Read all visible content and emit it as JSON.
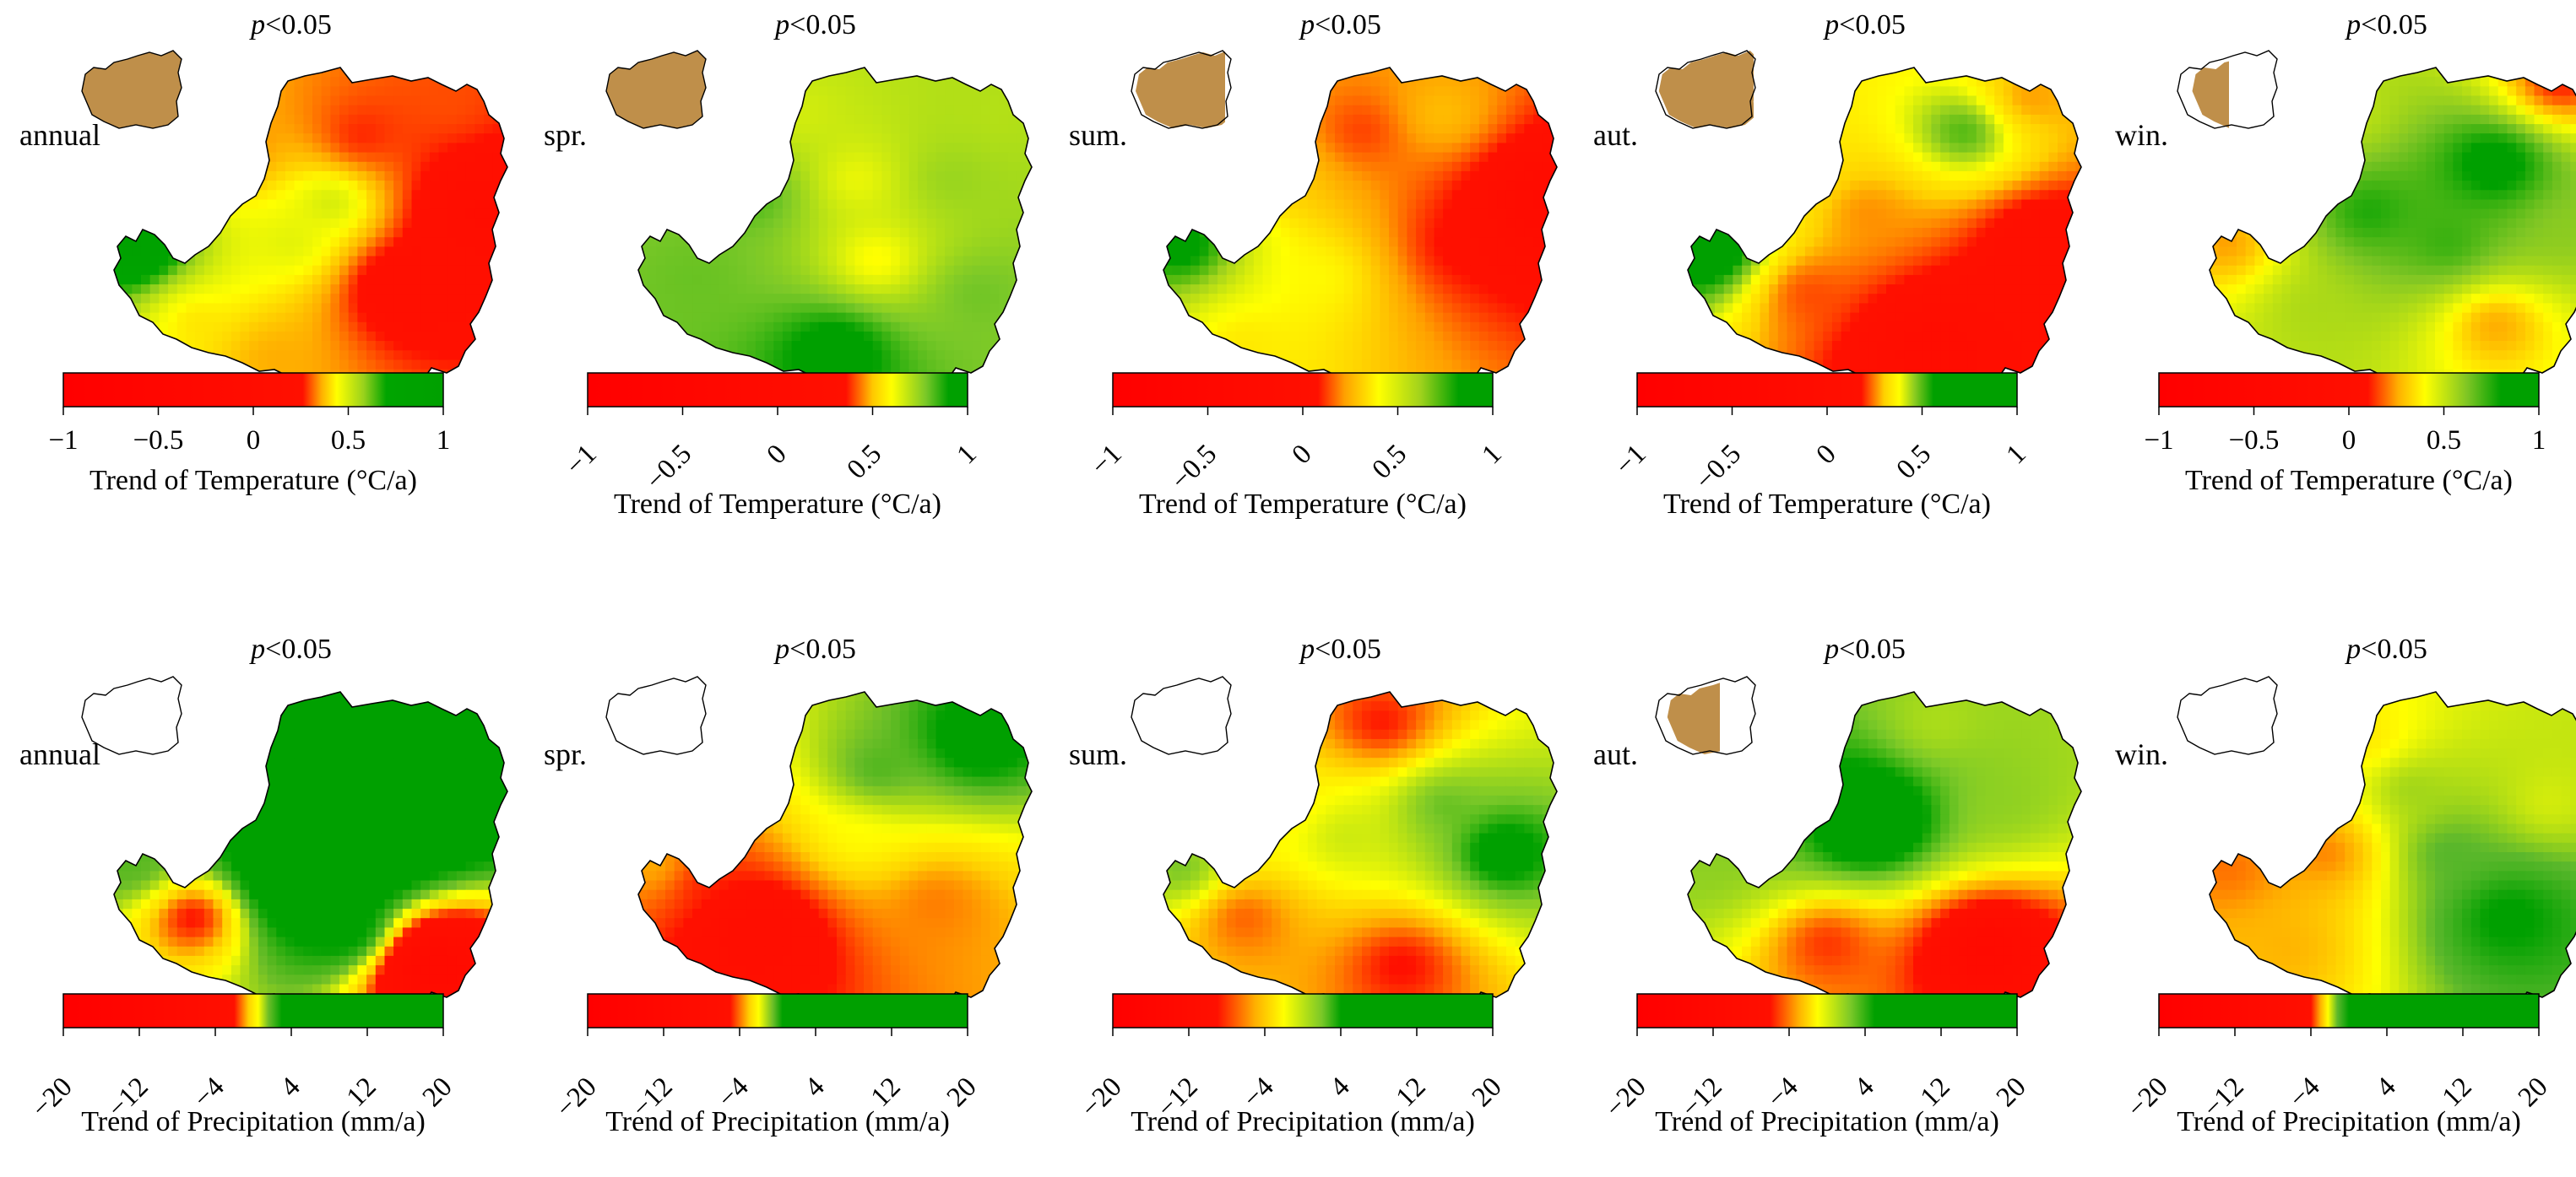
{
  "chart_data": [
    {
      "type": "heatmap",
      "variable": "temperature",
      "season": "annual",
      "label": "annual",
      "significance": "p<0.05",
      "significance_p": "p",
      "significance_rest": "<0.05",
      "colorbar": {
        "range": [
          -1,
          1
        ],
        "ticks": [
          -1,
          -0.5,
          0,
          0.5,
          1
        ],
        "tick_labels": [
          "−1",
          "−0.5",
          "0",
          "0.5",
          "1"
        ],
        "tick_rotation": "horizontal",
        "title": "Trend of Temperature (°C/a)",
        "stops": [
          {
            "value": -1,
            "color": "#ff0000"
          },
          {
            "value": 0.26,
            "color": "#ff1000"
          },
          {
            "value": 0.36,
            "color": "#ffb000"
          },
          {
            "value": 0.44,
            "color": "#ffff00"
          },
          {
            "value": 0.58,
            "color": "#9ad21c"
          },
          {
            "value": 0.7,
            "color": "#00a400"
          },
          {
            "value": 1,
            "color": "#00a000"
          }
        ]
      },
      "inset_significant_fraction": 1.0,
      "map_hotspots": [
        {
          "u": 0.62,
          "v": 0.22,
          "value": 0.25
        },
        {
          "u": 0.3,
          "v": 0.28,
          "value": 0.3
        },
        {
          "u": 0.72,
          "v": 0.68,
          "value": 0.1
        },
        {
          "u": 0.92,
          "v": 0.45,
          "value": 0.0
        },
        {
          "u": 0.45,
          "v": 0.55,
          "value": 0.5
        },
        {
          "u": 0.05,
          "v": 0.55,
          "value": 1.0
        },
        {
          "u": 0.55,
          "v": 0.42,
          "value": 0.55
        },
        {
          "u": 0.2,
          "v": 0.78,
          "value": 0.4
        },
        {
          "u": 0.85,
          "v": 0.12,
          "value": 0.3
        },
        {
          "u": 0.4,
          "v": 0.9,
          "value": 0.35
        }
      ]
    },
    {
      "type": "heatmap",
      "variable": "temperature",
      "season": "spring",
      "label": "spr.",
      "significance": "p<0.05",
      "significance_p": "p",
      "significance_rest": "<0.05",
      "colorbar": {
        "range": [
          -1,
          1
        ],
        "ticks": [
          -1,
          -0.5,
          0,
          0.5,
          1
        ],
        "tick_labels": [
          "−1",
          "−0.5",
          "0",
          "0.5",
          "1"
        ],
        "tick_rotation": "angled",
        "title": "Trend of Temperature (°C/a)",
        "stops": [
          {
            "value": -1,
            "color": "#ff0000"
          },
          {
            "value": 0.36,
            "color": "#ff1000"
          },
          {
            "value": 0.5,
            "color": "#ffc800"
          },
          {
            "value": 0.6,
            "color": "#ffff00"
          },
          {
            "value": 0.78,
            "color": "#7ac828"
          },
          {
            "value": 0.9,
            "color": "#00a000"
          },
          {
            "value": 1,
            "color": "#00a000"
          }
        ]
      },
      "inset_significant_fraction": 1.0,
      "map_hotspots": [
        {
          "u": 0.5,
          "v": 0.88,
          "value": 1.0
        },
        {
          "u": 0.3,
          "v": 0.4,
          "value": 0.85
        },
        {
          "u": 0.78,
          "v": 0.35,
          "value": 0.75
        },
        {
          "u": 0.55,
          "v": 0.35,
          "value": 0.6
        },
        {
          "u": 0.6,
          "v": 0.6,
          "value": 0.55
        },
        {
          "u": 0.85,
          "v": 0.7,
          "value": 0.8
        },
        {
          "u": 0.15,
          "v": 0.65,
          "value": 0.8
        },
        {
          "u": 0.4,
          "v": 0.15,
          "value": 0.65
        },
        {
          "u": 0.9,
          "v": 0.15,
          "value": 0.7
        }
      ]
    },
    {
      "type": "heatmap",
      "variable": "temperature",
      "season": "summer",
      "label": "sum.",
      "significance": "p<0.05",
      "significance_p": "p",
      "significance_rest": "<0.05",
      "colorbar": {
        "range": [
          -1,
          1
        ],
        "ticks": [
          -1,
          -0.5,
          0,
          0.5,
          1
        ],
        "tick_labels": [
          "−1",
          "−0.5",
          "0",
          "0.5",
          "1"
        ],
        "tick_rotation": "angled",
        "title": "Trend of Temperature (°C/a)",
        "stops": [
          {
            "value": -1,
            "color": "#ff0000"
          },
          {
            "value": 0.08,
            "color": "#ff1000"
          },
          {
            "value": 0.22,
            "color": "#ffa000"
          },
          {
            "value": 0.4,
            "color": "#ffff00"
          },
          {
            "value": 0.62,
            "color": "#a0d21c"
          },
          {
            "value": 0.82,
            "color": "#00a000"
          },
          {
            "value": 1,
            "color": "#00a000"
          }
        ]
      },
      "inset_significant_fraction": 0.8,
      "map_hotspots": [
        {
          "u": 0.95,
          "v": 0.42,
          "value": -0.3
        },
        {
          "u": 0.5,
          "v": 0.2,
          "value": 0.1
        },
        {
          "u": 0.75,
          "v": 0.55,
          "value": 0.05
        },
        {
          "u": 0.3,
          "v": 0.35,
          "value": 0.3
        },
        {
          "u": 0.4,
          "v": 0.65,
          "value": 0.4
        },
        {
          "u": 0.05,
          "v": 0.55,
          "value": 0.95
        },
        {
          "u": 0.2,
          "v": 0.85,
          "value": 0.35
        },
        {
          "u": 0.7,
          "v": 0.15,
          "value": 0.3
        }
      ]
    },
    {
      "type": "heatmap",
      "variable": "temperature",
      "season": "autumn",
      "label": "aut.",
      "significance": "p<0.05",
      "significance_p": "p",
      "significance_rest": "<0.05",
      "colorbar": {
        "range": [
          -1,
          1
        ],
        "ticks": [
          -1,
          -0.5,
          0,
          0.5,
          1
        ],
        "tick_labels": [
          "−1",
          "−0.5",
          "0",
          "0.5",
          "1"
        ],
        "tick_rotation": "angled",
        "title": "Trend of Temperature (°C/a)",
        "stops": [
          {
            "value": -1,
            "color": "#ff0000"
          },
          {
            "value": 0.18,
            "color": "#ff1000"
          },
          {
            "value": 0.3,
            "color": "#ffd000"
          },
          {
            "value": 0.38,
            "color": "#ffff00"
          },
          {
            "value": 0.46,
            "color": "#8ccc20"
          },
          {
            "value": 0.56,
            "color": "#00a000"
          },
          {
            "value": 1,
            "color": "#00a000"
          }
        ]
      },
      "inset_significant_fraction": 0.85,
      "map_hotspots": [
        {
          "u": 0.62,
          "v": 0.88,
          "value": -0.1
        },
        {
          "u": 0.9,
          "v": 0.55,
          "value": 0.05
        },
        {
          "u": 0.7,
          "v": 0.2,
          "value": 0.55
        },
        {
          "u": 0.45,
          "v": 0.45,
          "value": 0.25
        },
        {
          "u": 0.25,
          "v": 0.3,
          "value": 0.35
        },
        {
          "u": 0.05,
          "v": 0.55,
          "value": 0.75
        },
        {
          "u": 0.3,
          "v": 0.7,
          "value": 0.2
        },
        {
          "u": 0.85,
          "v": 0.1,
          "value": 0.25
        }
      ]
    },
    {
      "type": "heatmap",
      "variable": "temperature",
      "season": "winter",
      "label": "win.",
      "significance": "p<0.05",
      "significance_p": "p",
      "significance_rest": "<0.05",
      "colorbar": {
        "range": [
          -1,
          1
        ],
        "ticks": [
          -1,
          -0.5,
          0,
          0.5,
          1
        ],
        "tick_labels": [
          "−1",
          "−0.5",
          "0",
          "0.5",
          "1"
        ],
        "tick_rotation": "horizontal",
        "title": "Trend of Temperature (°C/a)",
        "stops": [
          {
            "value": -1,
            "color": "#ff0000"
          },
          {
            "value": 0.1,
            "color": "#ff1000"
          },
          {
            "value": 0.26,
            "color": "#ffb000"
          },
          {
            "value": 0.4,
            "color": "#ffff00"
          },
          {
            "value": 0.62,
            "color": "#80c624"
          },
          {
            "value": 0.8,
            "color": "#00a000"
          },
          {
            "value": 1,
            "color": "#00a000"
          }
        ]
      },
      "inset_significant_fraction": 0.3,
      "map_hotspots": [
        {
          "u": 0.72,
          "v": 0.3,
          "value": 0.95
        },
        {
          "u": 0.4,
          "v": 0.45,
          "value": 0.8
        },
        {
          "u": 0.6,
          "v": 0.55,
          "value": 0.75
        },
        {
          "u": 0.05,
          "v": 0.55,
          "value": 0.2
        },
        {
          "u": 0.72,
          "v": 0.8,
          "value": 0.2
        },
        {
          "u": 0.25,
          "v": 0.75,
          "value": 0.55
        },
        {
          "u": 0.9,
          "v": 0.5,
          "value": 0.6
        },
        {
          "u": 0.35,
          "v": 0.15,
          "value": 0.5
        },
        {
          "u": 0.88,
          "v": 0.05,
          "value": 0.05
        }
      ]
    },
    {
      "type": "heatmap",
      "variable": "precipitation",
      "season": "annual",
      "label": "annual",
      "significance": "p<0.05",
      "significance_p": "p",
      "significance_rest": "<0.05",
      "colorbar": {
        "range": [
          -20,
          20
        ],
        "ticks": [
          -20,
          -12,
          -4,
          4,
          12,
          20
        ],
        "tick_labels": [
          "−20",
          "−12",
          "−4",
          "4",
          "12",
          "20"
        ],
        "tick_rotation": "angled",
        "title": "Trend of Precipitation (mm/a)",
        "stops": [
          {
            "value": -20,
            "color": "#ff0000"
          },
          {
            "value": -2,
            "color": "#ff1000"
          },
          {
            "value": -0.5,
            "color": "#ffd000"
          },
          {
            "value": 0.5,
            "color": "#ffff00"
          },
          {
            "value": 1.6,
            "color": "#6cbe28"
          },
          {
            "value": 3,
            "color": "#00a000"
          },
          {
            "value": 20,
            "color": "#00a000"
          }
        ]
      },
      "inset_significant_fraction": 0.0,
      "map_hotspots": [
        {
          "u": 0.5,
          "v": 0.55,
          "value": 10
        },
        {
          "u": 0.7,
          "v": 0.35,
          "value": 8
        },
        {
          "u": 0.8,
          "v": 0.85,
          "value": -10
        },
        {
          "u": 0.2,
          "v": 0.7,
          "value": -3
        },
        {
          "u": 0.3,
          "v": 0.3,
          "value": 3
        },
        {
          "u": 0.85,
          "v": 0.1,
          "value": 6
        },
        {
          "u": 0.05,
          "v": 0.55,
          "value": 2
        },
        {
          "u": 0.6,
          "v": 0.75,
          "value": 4
        }
      ]
    },
    {
      "type": "heatmap",
      "variable": "precipitation",
      "season": "spring",
      "label": "spr.",
      "significance": "p<0.05",
      "significance_p": "p",
      "significance_rest": "<0.05",
      "colorbar": {
        "range": [
          -20,
          20
        ],
        "ticks": [
          -20,
          -12,
          -4,
          4,
          12,
          20
        ],
        "tick_labels": [
          "−20",
          "−12",
          "−4",
          "4",
          "12",
          "20"
        ],
        "tick_rotation": "angled",
        "title": "Trend of Precipitation (mm/a)",
        "stops": [
          {
            "value": -20,
            "color": "#ff0000"
          },
          {
            "value": -5,
            "color": "#ff1000"
          },
          {
            "value": -3,
            "color": "#ffd000"
          },
          {
            "value": -2,
            "color": "#ffff00"
          },
          {
            "value": -0.5,
            "color": "#6cbe28"
          },
          {
            "value": 0.5,
            "color": "#00a000"
          },
          {
            "value": 20,
            "color": "#00a000"
          }
        ]
      },
      "inset_significant_fraction": 0.0,
      "map_hotspots": [
        {
          "u": 0.85,
          "v": 0.15,
          "value": 1.5
        },
        {
          "u": 0.3,
          "v": 0.75,
          "value": -8
        },
        {
          "u": 0.55,
          "v": 0.45,
          "value": -2
        },
        {
          "u": 0.6,
          "v": 0.25,
          "value": 0
        },
        {
          "u": 0.15,
          "v": 0.6,
          "value": -5
        },
        {
          "u": 0.75,
          "v": 0.65,
          "value": -4
        },
        {
          "u": 0.05,
          "v": 0.55,
          "value": -3
        }
      ]
    },
    {
      "type": "heatmap",
      "variable": "precipitation",
      "season": "summer",
      "label": "sum.",
      "significance": "p<0.05",
      "significance_p": "p",
      "significance_rest": "<0.05",
      "colorbar": {
        "range": [
          -20,
          20
        ],
        "ticks": [
          -20,
          -12,
          -4,
          4,
          12,
          20
        ],
        "tick_labels": [
          "−20",
          "−12",
          "−4",
          "4",
          "12",
          "20"
        ],
        "tick_rotation": "angled",
        "title": "Trend of Precipitation (mm/a)",
        "stops": [
          {
            "value": -20,
            "color": "#ff0000"
          },
          {
            "value": -9,
            "color": "#ff1000"
          },
          {
            "value": -5,
            "color": "#ffb000"
          },
          {
            "value": -2,
            "color": "#ffff00"
          },
          {
            "value": 2,
            "color": "#7ac828"
          },
          {
            "value": 4,
            "color": "#00a000"
          },
          {
            "value": 20,
            "color": "#00a000"
          }
        ]
      },
      "inset_significant_fraction": 0.0,
      "map_hotspots": [
        {
          "u": 0.85,
          "v": 0.5,
          "value": 6
        },
        {
          "u": 0.55,
          "v": 0.1,
          "value": -10
        },
        {
          "u": 0.6,
          "v": 0.85,
          "value": -10
        },
        {
          "u": 0.2,
          "v": 0.7,
          "value": -8
        },
        {
          "u": 0.45,
          "v": 0.45,
          "value": 0
        },
        {
          "u": 0.05,
          "v": 0.55,
          "value": 3
        },
        {
          "u": 0.7,
          "v": 0.35,
          "value": 3
        },
        {
          "u": 0.3,
          "v": 0.35,
          "value": -3
        }
      ]
    },
    {
      "type": "heatmap",
      "variable": "precipitation",
      "season": "autumn",
      "label": "aut.",
      "significance": "p<0.05",
      "significance_p": "p",
      "significance_rest": "<0.05",
      "colorbar": {
        "range": [
          -20,
          20
        ],
        "ticks": [
          -20,
          -12,
          -4,
          4,
          12,
          20
        ],
        "tick_labels": [
          "−20",
          "−12",
          "−4",
          "4",
          "12",
          "20"
        ],
        "tick_rotation": "angled",
        "title": "Trend of Precipitation (mm/a)",
        "stops": [
          {
            "value": -20,
            "color": "#ff0000"
          },
          {
            "value": -6,
            "color": "#ff1000"
          },
          {
            "value": -3,
            "color": "#ffb000"
          },
          {
            "value": -1,
            "color": "#ffff00"
          },
          {
            "value": 2.5,
            "color": "#7ac828"
          },
          {
            "value": 5,
            "color": "#00a000"
          },
          {
            "value": 20,
            "color": "#00a000"
          }
        ]
      },
      "inset_significant_fraction": 0.45,
      "map_hotspots": [
        {
          "u": 0.45,
          "v": 0.4,
          "value": 12
        },
        {
          "u": 0.75,
          "v": 0.8,
          "value": -12
        },
        {
          "u": 0.35,
          "v": 0.78,
          "value": -6
        },
        {
          "u": 0.05,
          "v": 0.55,
          "value": 2
        },
        {
          "u": 0.8,
          "v": 0.35,
          "value": 2
        },
        {
          "u": 0.62,
          "v": 0.1,
          "value": 1
        },
        {
          "u": 0.2,
          "v": 0.4,
          "value": 3
        }
      ]
    },
    {
      "type": "heatmap",
      "variable": "precipitation",
      "season": "winter",
      "label": "win.",
      "significance": "p<0.05",
      "significance_p": "p",
      "significance_rest": "<0.05",
      "colorbar": {
        "range": [
          -20,
          20
        ],
        "ticks": [
          -20,
          -12,
          -4,
          4,
          12,
          20
        ],
        "tick_labels": [
          "−20",
          "−12",
          "−4",
          "4",
          "12",
          "20"
        ],
        "tick_rotation": "angled",
        "title": "Trend of Precipitation (mm/a)",
        "stops": [
          {
            "value": -20,
            "color": "#ff0000"
          },
          {
            "value": -4,
            "color": "#ff1000"
          },
          {
            "value": -3,
            "color": "#ffb000"
          },
          {
            "value": -2.2,
            "color": "#ffff00"
          },
          {
            "value": -1.2,
            "color": "#5cb82c"
          },
          {
            "value": 0,
            "color": "#00a000"
          },
          {
            "value": 20,
            "color": "#00a000"
          }
        ]
      },
      "inset_significant_fraction": 0.0,
      "map_hotspots": [
        {
          "u": 0.75,
          "v": 0.7,
          "value": 0.5
        },
        {
          "u": 0.3,
          "v": 0.5,
          "value": -3.5
        },
        {
          "u": 0.2,
          "v": 0.8,
          "value": -3
        },
        {
          "u": 0.5,
          "v": 0.3,
          "value": -1.5
        },
        {
          "u": 0.85,
          "v": 0.35,
          "value": -2
        },
        {
          "u": 0.05,
          "v": 0.55,
          "value": -3.5
        },
        {
          "u": 0.6,
          "v": 0.5,
          "value": -1
        },
        {
          "u": 0.4,
          "v": 0.15,
          "value": -2.5
        }
      ]
    }
  ]
}
